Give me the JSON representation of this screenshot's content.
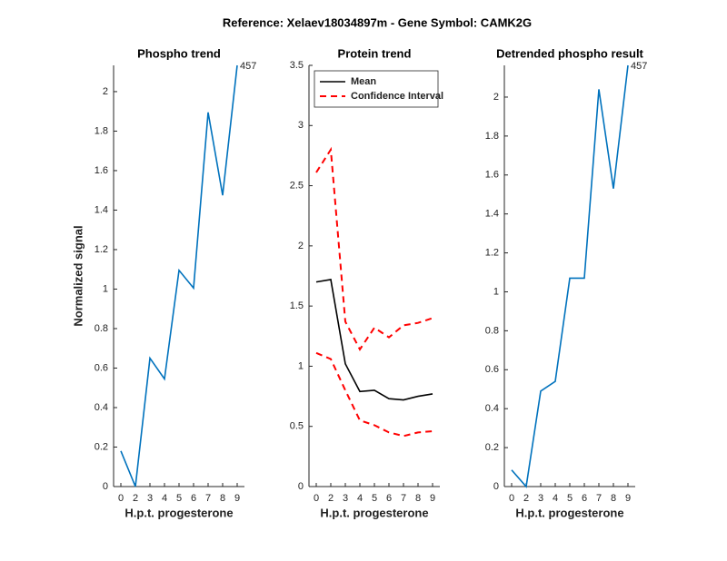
{
  "title": "Reference:  Xelaev18034897m - Gene Symbol:  CAMK2G",
  "chart_data": [
    {
      "type": "line",
      "title": "Phospho trend",
      "ylabel": "Normalized signal",
      "xlabel": "H.p.t. progesterone",
      "categories": [
        "0",
        "2",
        "3",
        "4",
        "5",
        "6",
        "7",
        "8",
        "9"
      ],
      "series": [
        {
          "color": "#0072bd",
          "values": [
            0.18,
            0,
            0.65,
            0.545,
            1.095,
            1.005,
            1.895,
            1.475,
            2.133
          ]
        }
      ],
      "annotation": "457",
      "ylim": [
        0,
        2.133
      ],
      "yticks": [
        0,
        0.2,
        0.4,
        0.6,
        0.8,
        1,
        1.2,
        1.4,
        1.6,
        1.8,
        2
      ]
    },
    {
      "type": "line",
      "title": "Protein trend",
      "xlabel": "H.p.t. progesterone",
      "categories": [
        "0",
        "2",
        "3",
        "4",
        "5",
        "6",
        "7",
        "8",
        "9"
      ],
      "series": [
        {
          "name": "Mean",
          "color": "#000000",
          "values": [
            1.7,
            1.72,
            1.02,
            0.79,
            0.8,
            0.73,
            0.72,
            0.75,
            0.77
          ]
        },
        {
          "name": "Confidence Interval",
          "color": "#ff0000",
          "dashed": true,
          "upper": [
            2.61,
            2.8,
            1.37,
            1.14,
            1.32,
            1.24,
            1.34,
            1.36,
            1.4
          ],
          "lower": [
            1.11,
            1.06,
            0.8,
            0.55,
            0.51,
            0.45,
            0.42,
            0.45,
            0.46
          ]
        }
      ],
      "legend": "northwest",
      "ylim": [
        0,
        3.5
      ],
      "yticks": [
        0,
        0.5,
        1,
        1.5,
        2,
        2.5,
        3,
        3.5
      ]
    },
    {
      "type": "line",
      "title": "Detrended phospho result",
      "xlabel": "H.p.t. progesterone",
      "categories": [
        "0",
        "2",
        "3",
        "4",
        "5",
        "6",
        "7",
        "8",
        "9"
      ],
      "series": [
        {
          "color": "#0072bd",
          "values": [
            0.085,
            0,
            0.49,
            0.54,
            1.07,
            1.07,
            2.04,
            1.53,
            2.163
          ]
        }
      ],
      "annotation": "457",
      "ylim": [
        0,
        2.163
      ],
      "yticks": [
        0,
        0.2,
        0.4,
        0.6,
        0.8,
        1,
        1.2,
        1.4,
        1.6,
        1.8,
        2
      ]
    }
  ]
}
